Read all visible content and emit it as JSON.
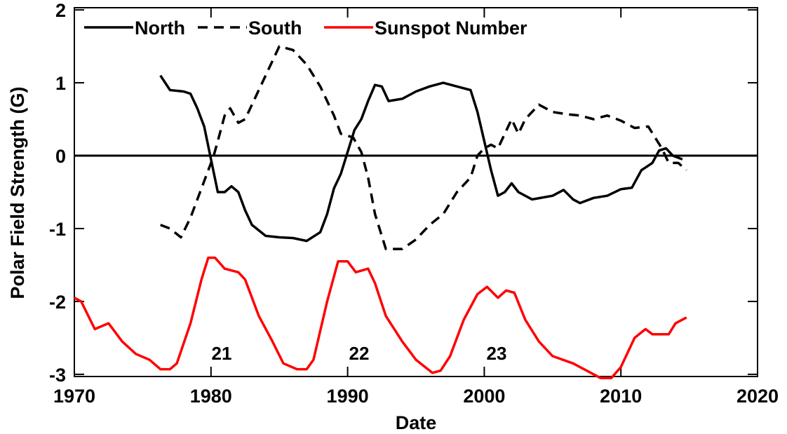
{
  "chart_data": {
    "type": "line",
    "x_label": "Date",
    "y_label": "Polar Field Strength (G)",
    "xlim": [
      1970,
      2020
    ],
    "xticks": [
      1970,
      1980,
      1990,
      2000,
      2010,
      2020
    ],
    "ylim": [
      -3.03,
      2.03
    ],
    "yticks": [
      -3,
      -2,
      -1,
      0,
      1,
      2
    ],
    "reference_line": 0,
    "legend": "top-left",
    "annotations": [
      "21",
      "22",
      "23"
    ],
    "series": [
      {
        "name": "North",
        "color": "#000000",
        "line_style": "solid",
        "x": [
          1976.3,
          1977,
          1978,
          1978.5,
          1979,
          1979.5,
          1980,
          1980.5,
          1981,
          1981.5,
          1982,
          1982.5,
          1983,
          1984,
          1985,
          1986,
          1987,
          1988,
          1988.5,
          1989,
          1989.5,
          1990,
          1990.5,
          1991,
          1991.5,
          1992,
          1992.5,
          1993,
          1994,
          1995,
          1996,
          1997,
          1998,
          1999,
          1999.5,
          2000,
          2000.5,
          2001,
          2001.5,
          2002,
          2002.5,
          2003.5,
          2005,
          2005.8,
          2006.5,
          2007,
          2008,
          2009,
          2010,
          2010.8,
          2011.5,
          2012.3,
          2012.8,
          2013.3,
          2013.8,
          2014.5
        ],
        "values": [
          1.1,
          0.9,
          0.88,
          0.85,
          0.65,
          0.4,
          -0.05,
          -0.5,
          -0.5,
          -0.42,
          -0.5,
          -0.75,
          -0.95,
          -1.1,
          -1.12,
          -1.13,
          -1.17,
          -1.05,
          -0.8,
          -0.45,
          -0.25,
          0.05,
          0.35,
          0.5,
          0.75,
          0.97,
          0.95,
          0.75,
          0.78,
          0.88,
          0.95,
          1.0,
          0.95,
          0.9,
          0.6,
          0.2,
          -0.2,
          -0.55,
          -0.5,
          -0.38,
          -0.5,
          -0.6,
          -0.55,
          -0.47,
          -0.6,
          -0.65,
          -0.58,
          -0.55,
          -0.46,
          -0.44,
          -0.2,
          -0.1,
          0.07,
          0.1,
          0.0,
          -0.05
        ]
      },
      {
        "name": "South",
        "color": "#000000",
        "line_style": "dashed",
        "x": [
          1976.3,
          1977,
          1977.8,
          1978.5,
          1979.5,
          1980.2,
          1980.5,
          1981,
          1981.4,
          1982,
          1982.5,
          1983,
          1984,
          1985,
          1986,
          1987,
          1988,
          1989,
          1989.5,
          1990.4,
          1991,
          1991.5,
          1992,
          1992.8,
          1994,
          1995,
          1996,
          1997,
          1998,
          1999,
          1999.5,
          2000,
          2000.5,
          2001,
          2002,
          2002.5,
          2003,
          2004,
          2005,
          2006,
          2007,
          2008,
          2009,
          2010,
          2011,
          2012,
          2013,
          2013.5,
          2014.2,
          2014.8
        ],
        "values": [
          -0.95,
          -1.0,
          -1.12,
          -0.85,
          -0.35,
          0.0,
          0.2,
          0.55,
          0.65,
          0.45,
          0.5,
          0.7,
          1.1,
          1.5,
          1.45,
          1.25,
          0.95,
          0.55,
          0.3,
          0.25,
          0.05,
          -0.3,
          -0.8,
          -1.28,
          -1.28,
          -1.15,
          -0.95,
          -0.8,
          -0.5,
          -0.3,
          0.0,
          0.1,
          0.15,
          0.1,
          0.5,
          0.3,
          0.5,
          0.7,
          0.6,
          0.57,
          0.55,
          0.5,
          0.55,
          0.48,
          0.38,
          0.4,
          0.1,
          -0.1,
          -0.1,
          -0.2
        ]
      },
      {
        "name": "Sunspot Number",
        "color": "#ff0000",
        "line_style": "solid",
        "x": [
          1970,
          1970.5,
          1971.5,
          1972.5,
          1973.5,
          1974.5,
          1975.5,
          1976.3,
          1977,
          1977.5,
          1978.5,
          1979.3,
          1979.8,
          1980.3,
          1981,
          1982,
          1982.5,
          1983.5,
          1984.5,
          1985.3,
          1986.3,
          1987,
          1987.5,
          1988.5,
          1989.3,
          1990,
          1990.6,
          1991.5,
          1992,
          1992.8,
          1994,
          1995,
          1996.2,
          1996.8,
          1997.5,
          1998.5,
          1999.5,
          2000.2,
          2001,
          2001.6,
          2002.2,
          2003,
          2004,
          2005,
          2006.5,
          2007.5,
          2008.5,
          2009.3,
          2010,
          2011,
          2011.8,
          2012.3,
          2013.5,
          2014,
          2014.8
        ],
        "values": [
          -1.95,
          -2.0,
          -2.38,
          -2.3,
          -2.55,
          -2.72,
          -2.8,
          -2.93,
          -2.93,
          -2.85,
          -2.3,
          -1.7,
          -1.4,
          -1.4,
          -1.55,
          -1.6,
          -1.7,
          -2.2,
          -2.55,
          -2.85,
          -2.93,
          -2.93,
          -2.8,
          -2.0,
          -1.45,
          -1.45,
          -1.6,
          -1.55,
          -1.75,
          -2.2,
          -2.55,
          -2.8,
          -2.98,
          -2.95,
          -2.75,
          -2.25,
          -1.9,
          -1.8,
          -1.95,
          -1.85,
          -1.88,
          -2.25,
          -2.55,
          -2.75,
          -2.85,
          -2.95,
          -3.05,
          -3.05,
          -2.9,
          -2.5,
          -2.38,
          -2.45,
          -2.45,
          -2.3,
          -2.22
        ]
      }
    ]
  }
}
